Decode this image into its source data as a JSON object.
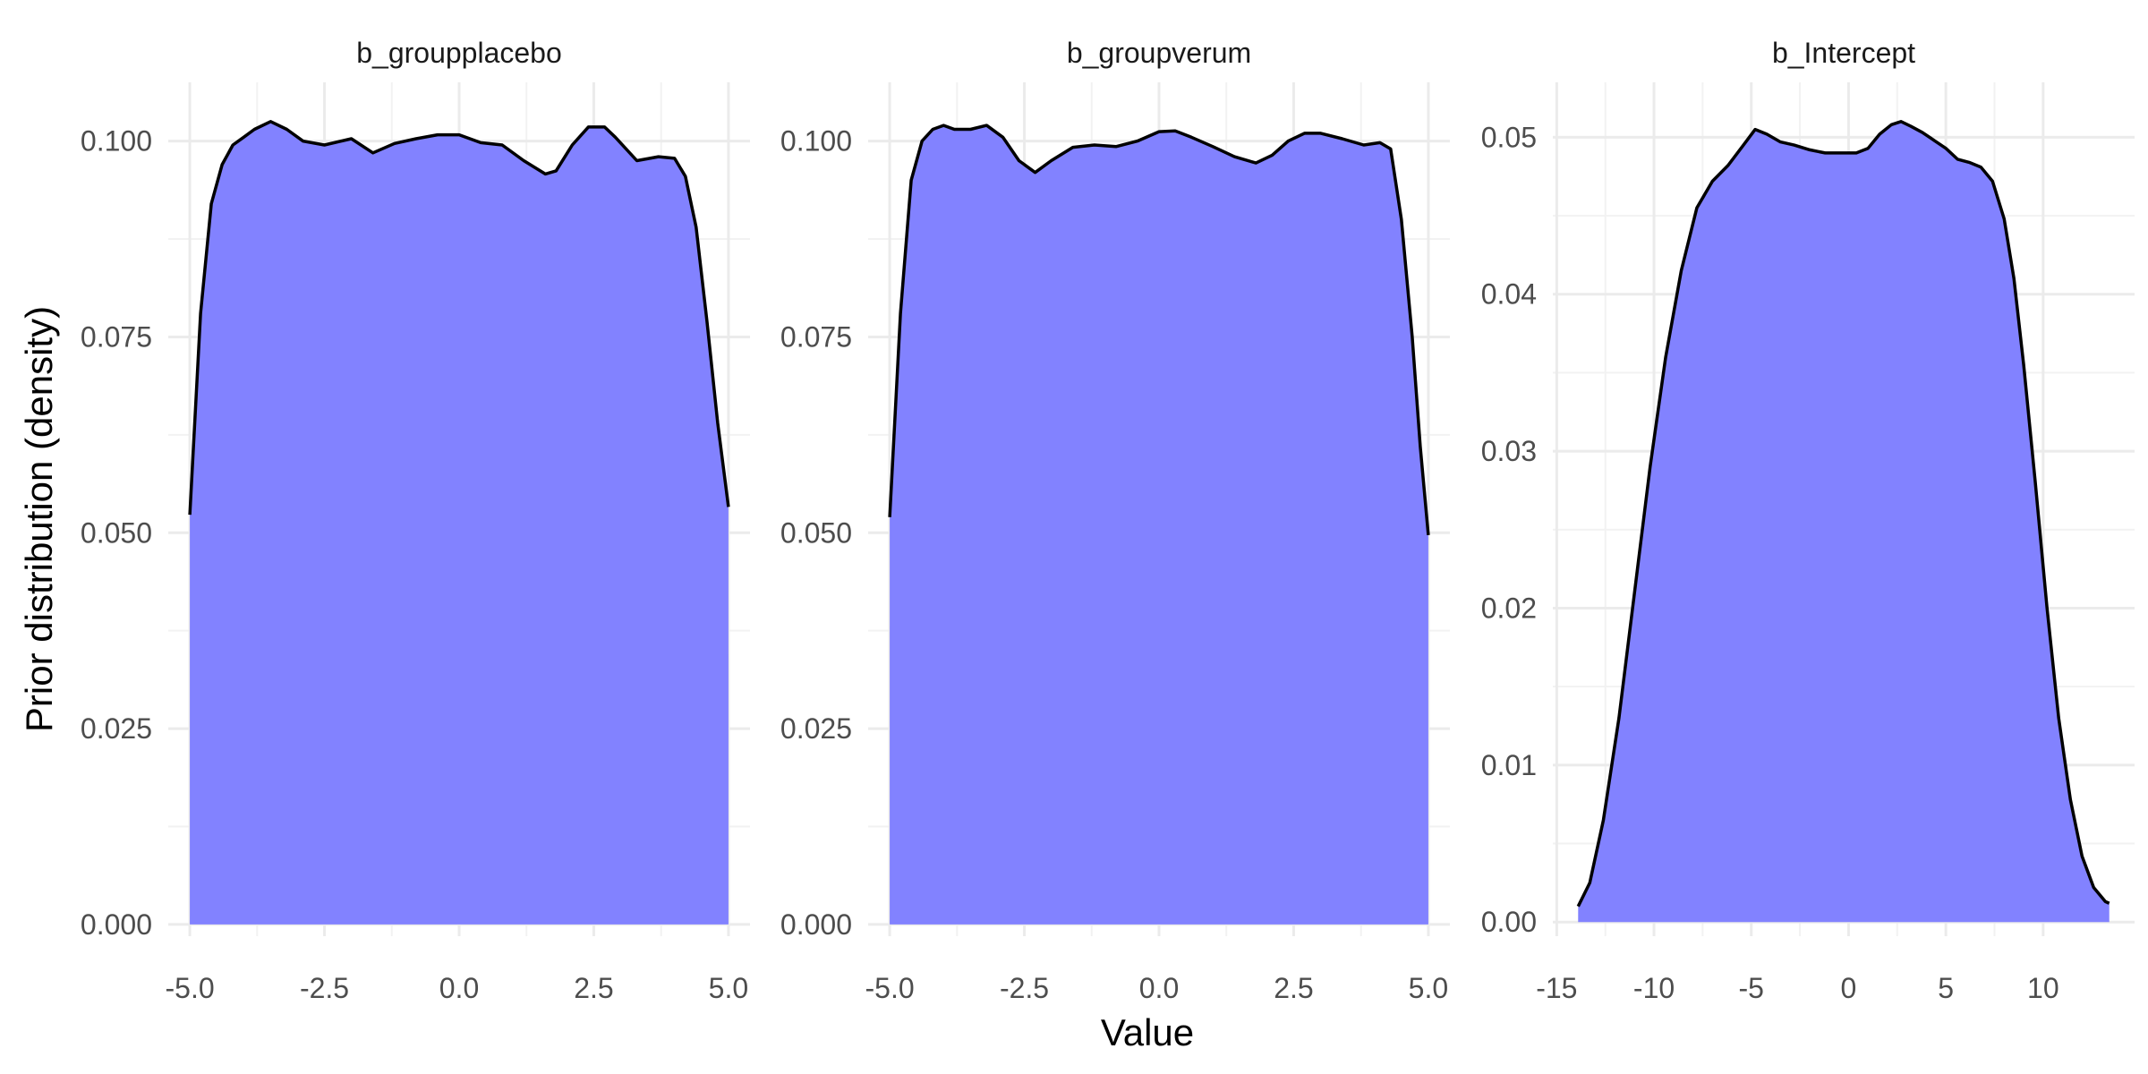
{
  "chart_data": {
    "type": "area",
    "xlabel": "Value",
    "ylabel": "Prior distribution (density)",
    "fill_color": "#8080ff",
    "line_color": "#000000",
    "grid": true,
    "legend": "none",
    "facets": [
      {
        "title": "b_groupplacebo",
        "xlim": [
          -5.4,
          5.4
        ],
        "ylim": [
          -0.0015,
          0.1075
        ],
        "x_ticks": [
          -5.0,
          -2.5,
          0.0,
          2.5,
          5.0
        ],
        "x_tick_labels": [
          "-5.0",
          "-2.5",
          "0.0",
          "2.5",
          "5.0"
        ],
        "y_ticks": [
          0.0,
          0.025,
          0.05,
          0.075,
          0.1
        ],
        "y_tick_labels": [
          "0.000",
          "0.025",
          "0.050",
          "0.075",
          "0.100"
        ],
        "x": [
          -5.0,
          -4.8,
          -4.6,
          -4.4,
          -4.2,
          -4.0,
          -3.8,
          -3.5,
          -3.2,
          -2.9,
          -2.5,
          -2.0,
          -1.6,
          -1.2,
          -0.8,
          -0.4,
          0.0,
          0.4,
          0.8,
          1.2,
          1.6,
          1.8,
          2.1,
          2.4,
          2.7,
          2.9,
          3.3,
          3.7,
          4.0,
          4.2,
          4.4,
          4.6,
          4.8,
          5.0
        ],
        "y": [
          0.0523,
          0.078,
          0.092,
          0.097,
          0.0995,
          0.1005,
          0.1015,
          0.1025,
          0.1015,
          0.1,
          0.0995,
          0.1003,
          0.0985,
          0.0997,
          0.1003,
          0.1008,
          0.1008,
          0.0998,
          0.0995,
          0.0975,
          0.0958,
          0.0962,
          0.0995,
          0.1018,
          0.1018,
          0.1005,
          0.0975,
          0.098,
          0.0978,
          0.0955,
          0.089,
          0.077,
          0.064,
          0.0533
        ]
      },
      {
        "title": "b_groupverum",
        "xlim": [
          -5.4,
          5.4
        ],
        "ylim": [
          -0.0015,
          0.1075
        ],
        "x_ticks": [
          -5.0,
          -2.5,
          0.0,
          2.5,
          5.0
        ],
        "x_tick_labels": [
          "-5.0",
          "-2.5",
          "0.0",
          "2.5",
          "5.0"
        ],
        "y_ticks": [
          0.0,
          0.025,
          0.05,
          0.075,
          0.1
        ],
        "y_tick_labels": [
          "0.000",
          "0.025",
          "0.050",
          "0.075",
          "0.100"
        ],
        "x": [
          -5.0,
          -4.8,
          -4.6,
          -4.4,
          -4.2,
          -4.0,
          -3.8,
          -3.5,
          -3.2,
          -2.9,
          -2.6,
          -2.3,
          -2.0,
          -1.6,
          -1.2,
          -0.8,
          -0.4,
          0.0,
          0.3,
          0.6,
          1.0,
          1.4,
          1.8,
          2.1,
          2.4,
          2.7,
          3.0,
          3.4,
          3.8,
          4.1,
          4.3,
          4.5,
          4.7,
          4.85,
          5.0
        ],
        "y": [
          0.052,
          0.078,
          0.095,
          0.1,
          0.1015,
          0.102,
          0.1015,
          0.1015,
          0.102,
          0.1005,
          0.0975,
          0.096,
          0.0975,
          0.0992,
          0.0995,
          0.0993,
          0.1,
          0.1012,
          0.1013,
          0.1005,
          0.0993,
          0.098,
          0.0972,
          0.0982,
          0.1,
          0.101,
          0.101,
          0.1003,
          0.0995,
          0.0998,
          0.099,
          0.09,
          0.075,
          0.061,
          0.0497
        ]
      },
      {
        "title": "b_Intercept",
        "xlim": [
          -15.2,
          14.7
        ],
        "ylim": [
          -0.0009,
          0.0535
        ],
        "x_ticks": [
          -15,
          -10,
          -5,
          0,
          5,
          10
        ],
        "x_tick_labels": [
          "-15",
          "-10",
          "-5",
          "0",
          "5",
          "10"
        ],
        "y_ticks": [
          0.0,
          0.01,
          0.02,
          0.03,
          0.04,
          0.05
        ],
        "y_tick_labels": [
          "0.00",
          "0.01",
          "0.02",
          "0.03",
          "0.04",
          "0.05"
        ],
        "x": [
          -13.9,
          -13.3,
          -12.6,
          -11.8,
          -11.0,
          -10.2,
          -9.4,
          -8.6,
          -7.8,
          -7.0,
          -6.2,
          -5.4,
          -4.8,
          -4.2,
          -3.5,
          -2.8,
          -2.0,
          -1.2,
          -0.4,
          0.4,
          1.0,
          1.6,
          2.2,
          2.7,
          3.2,
          3.8,
          4.4,
          5.0,
          5.6,
          6.2,
          6.8,
          7.4,
          8.0,
          8.5,
          9.0,
          9.6,
          10.2,
          10.8,
          11.4,
          12.0,
          12.6,
          13.2,
          13.4
        ],
        "y": [
          0.001,
          0.0025,
          0.0065,
          0.013,
          0.021,
          0.029,
          0.036,
          0.0415,
          0.0455,
          0.0472,
          0.0482,
          0.0495,
          0.0505,
          0.0502,
          0.0497,
          0.0495,
          0.0492,
          0.049,
          0.049,
          0.049,
          0.0493,
          0.0502,
          0.0508,
          0.051,
          0.0507,
          0.0503,
          0.0498,
          0.0493,
          0.0486,
          0.0484,
          0.0481,
          0.0472,
          0.0448,
          0.041,
          0.0355,
          0.028,
          0.02,
          0.013,
          0.0078,
          0.0042,
          0.0022,
          0.0013,
          0.0012
        ]
      }
    ]
  }
}
